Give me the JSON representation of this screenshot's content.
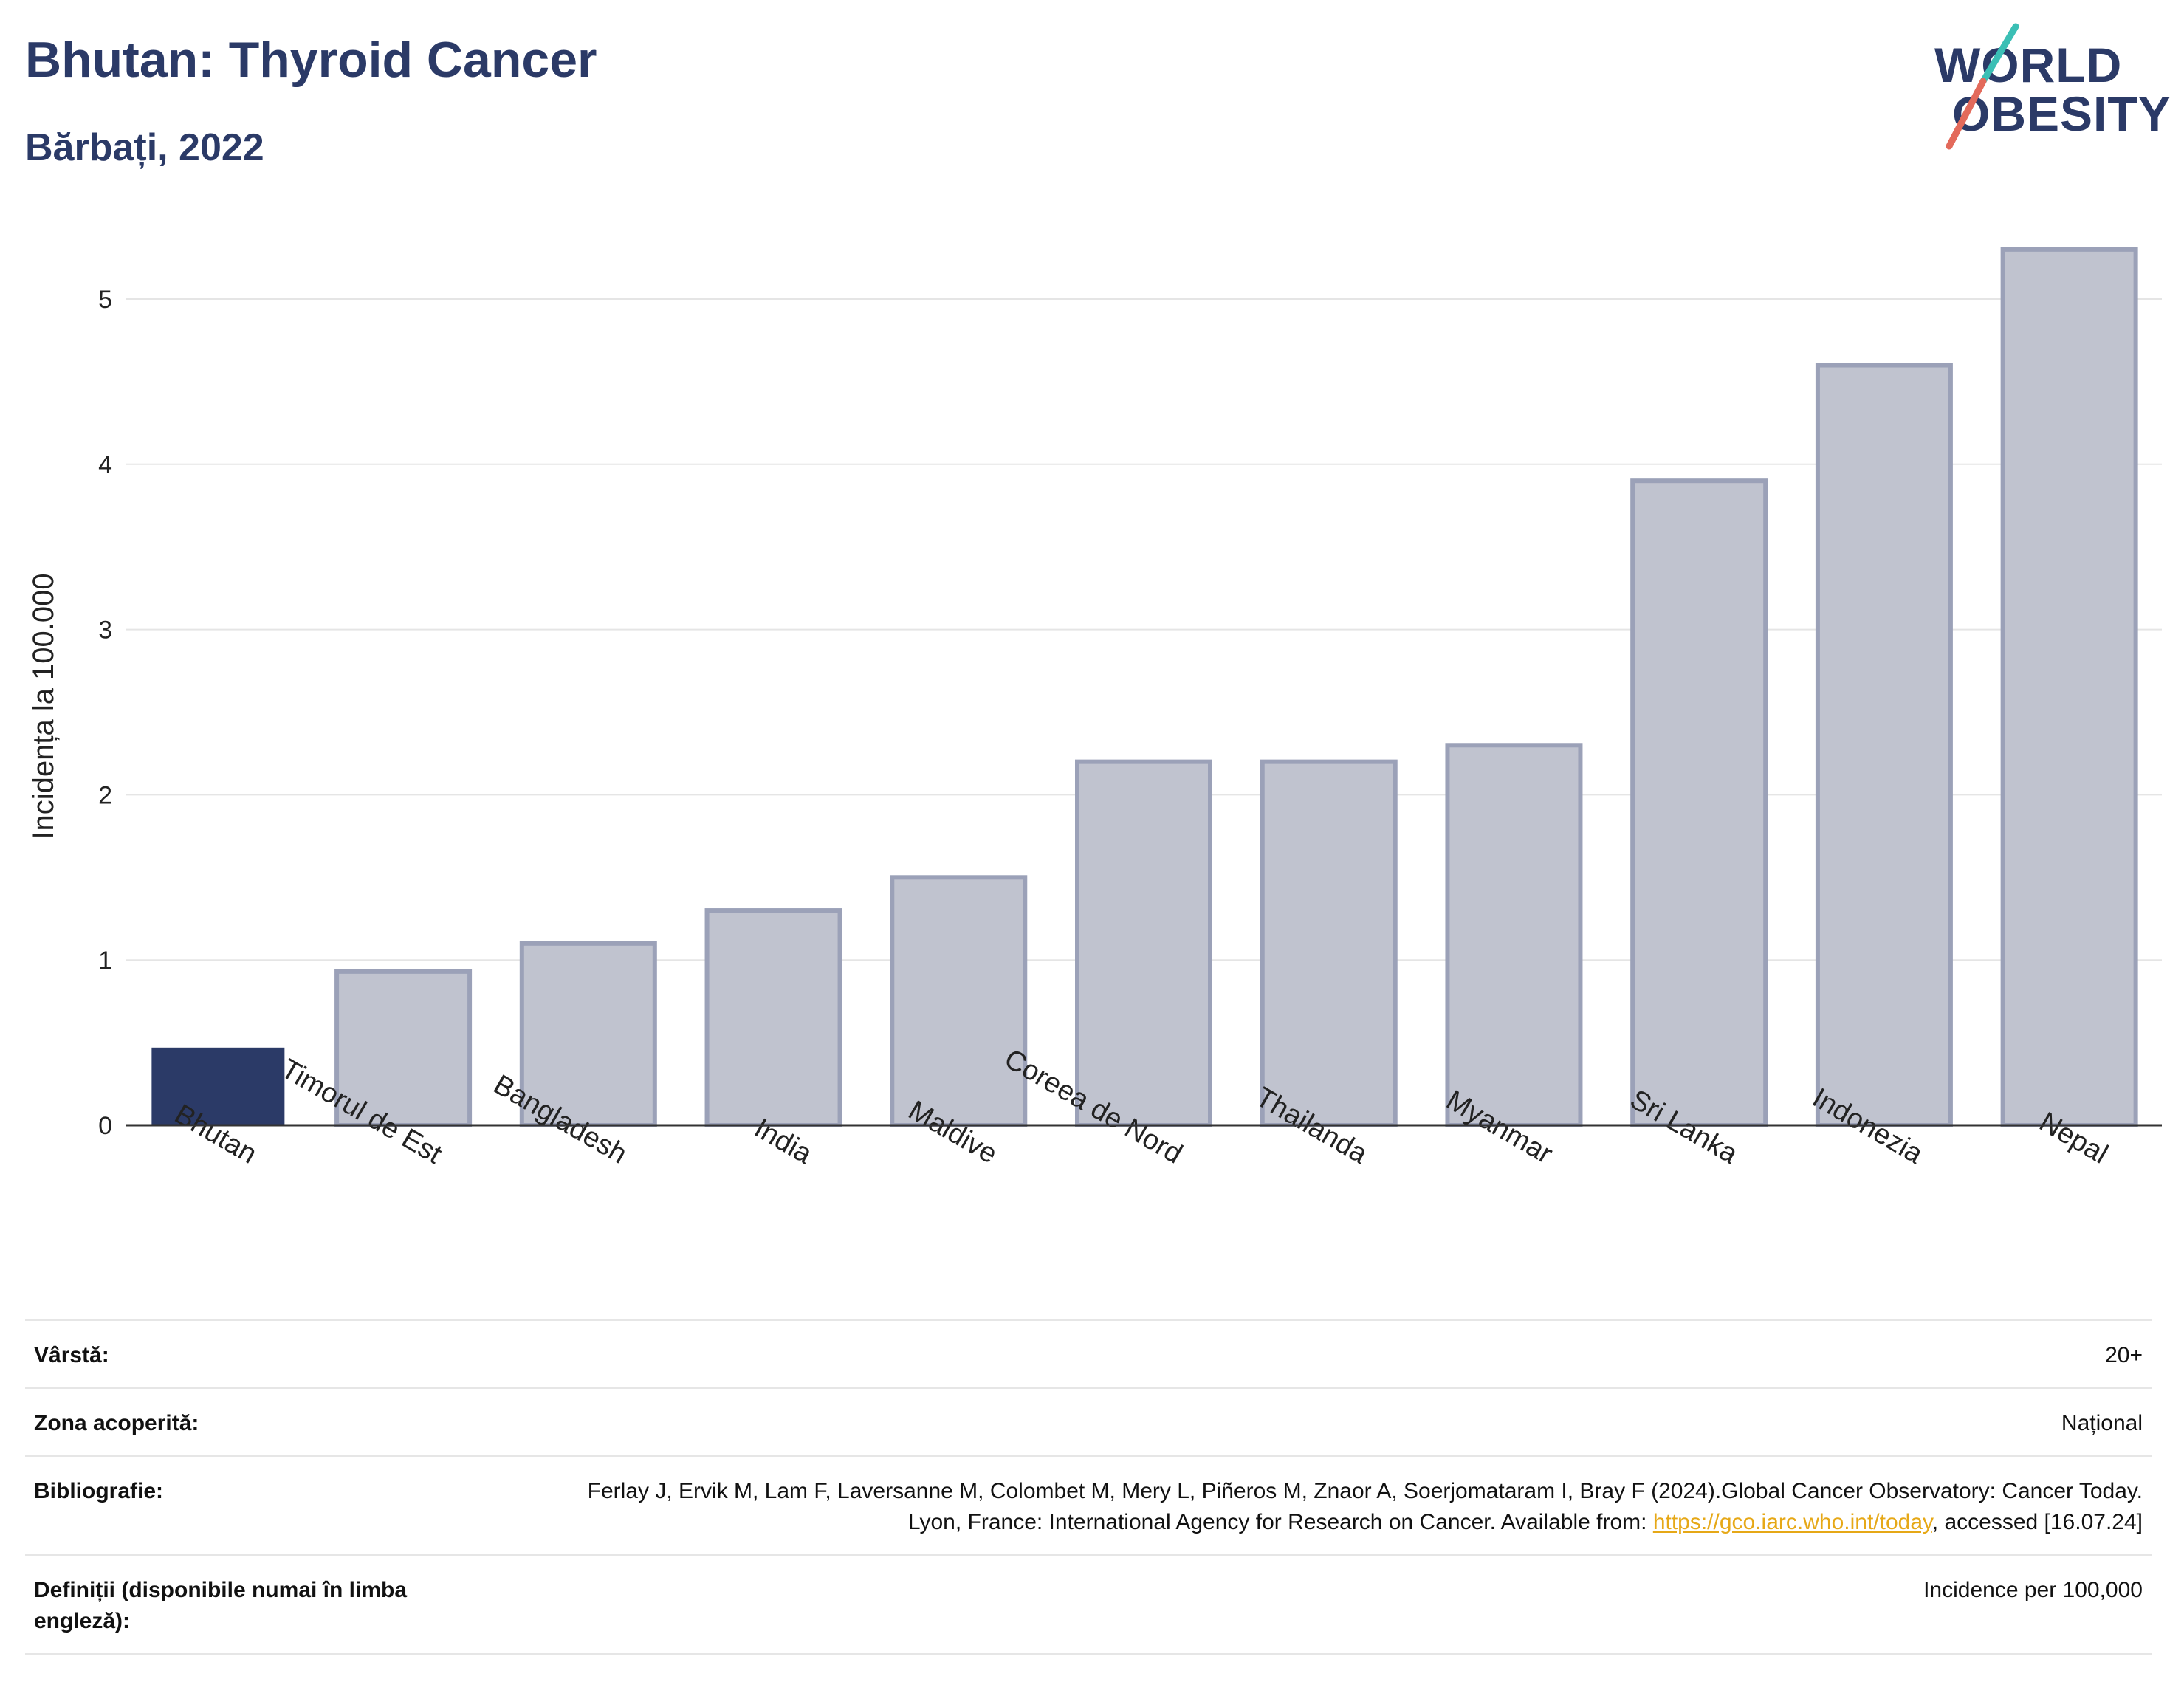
{
  "header": {
    "title": "Bhutan: Thyroid Cancer",
    "subtitle": "Bărbați, 2022"
  },
  "logo": {
    "line1": "WORLD",
    "line2": "OBESITY"
  },
  "colors": {
    "highlight": "#2b3a67",
    "bar": "#c0c3cf",
    "bar_border": "#9ba1b8",
    "grid": "#e5e5e5",
    "logo_teal": "#3bbfb5",
    "logo_coral": "#e36a5b"
  },
  "chart_data": {
    "type": "bar",
    "ylabel": "Incidența la 100.000",
    "xlabel": "",
    "ylim": [
      0,
      5.5
    ],
    "yticks": [
      0,
      1,
      2,
      3,
      4,
      5
    ],
    "grid": true,
    "highlight": "Bhutan",
    "categories": [
      "Bhutan",
      "Timorul de Est",
      "Bangladesh",
      "India",
      "Maldive",
      "Coreea de Nord",
      "Thailanda",
      "Myanmar",
      "Sri Lanka",
      "Indonezia",
      "Nepal"
    ],
    "values": [
      0.47,
      0.93,
      1.1,
      1.3,
      1.5,
      2.2,
      2.2,
      2.3,
      3.9,
      4.6,
      5.3
    ]
  },
  "meta": {
    "age_label": "Vârstă:",
    "age_value": "20+",
    "coverage_label": "Zona acoperită:",
    "coverage_value": "Național",
    "bib_label": "Bibliografie:",
    "bib_text_1": "Ferlay J, Ervik M, Lam F, Laversanne M, Colombet M, Mery L, Piñeros M, Znaor A, Soerjomataram I, Bray F (2024).Global Cancer Observatory: Cancer Today. Lyon, France: International Agency for Research on Cancer. Available from: ",
    "bib_link": "https://gco.iarc.who.int/today",
    "bib_text_2": ", accessed [16.07.24]",
    "def_label": "Definiții (disponibile numai în limba engleză):",
    "def_value": "Incidence per 100,000"
  }
}
